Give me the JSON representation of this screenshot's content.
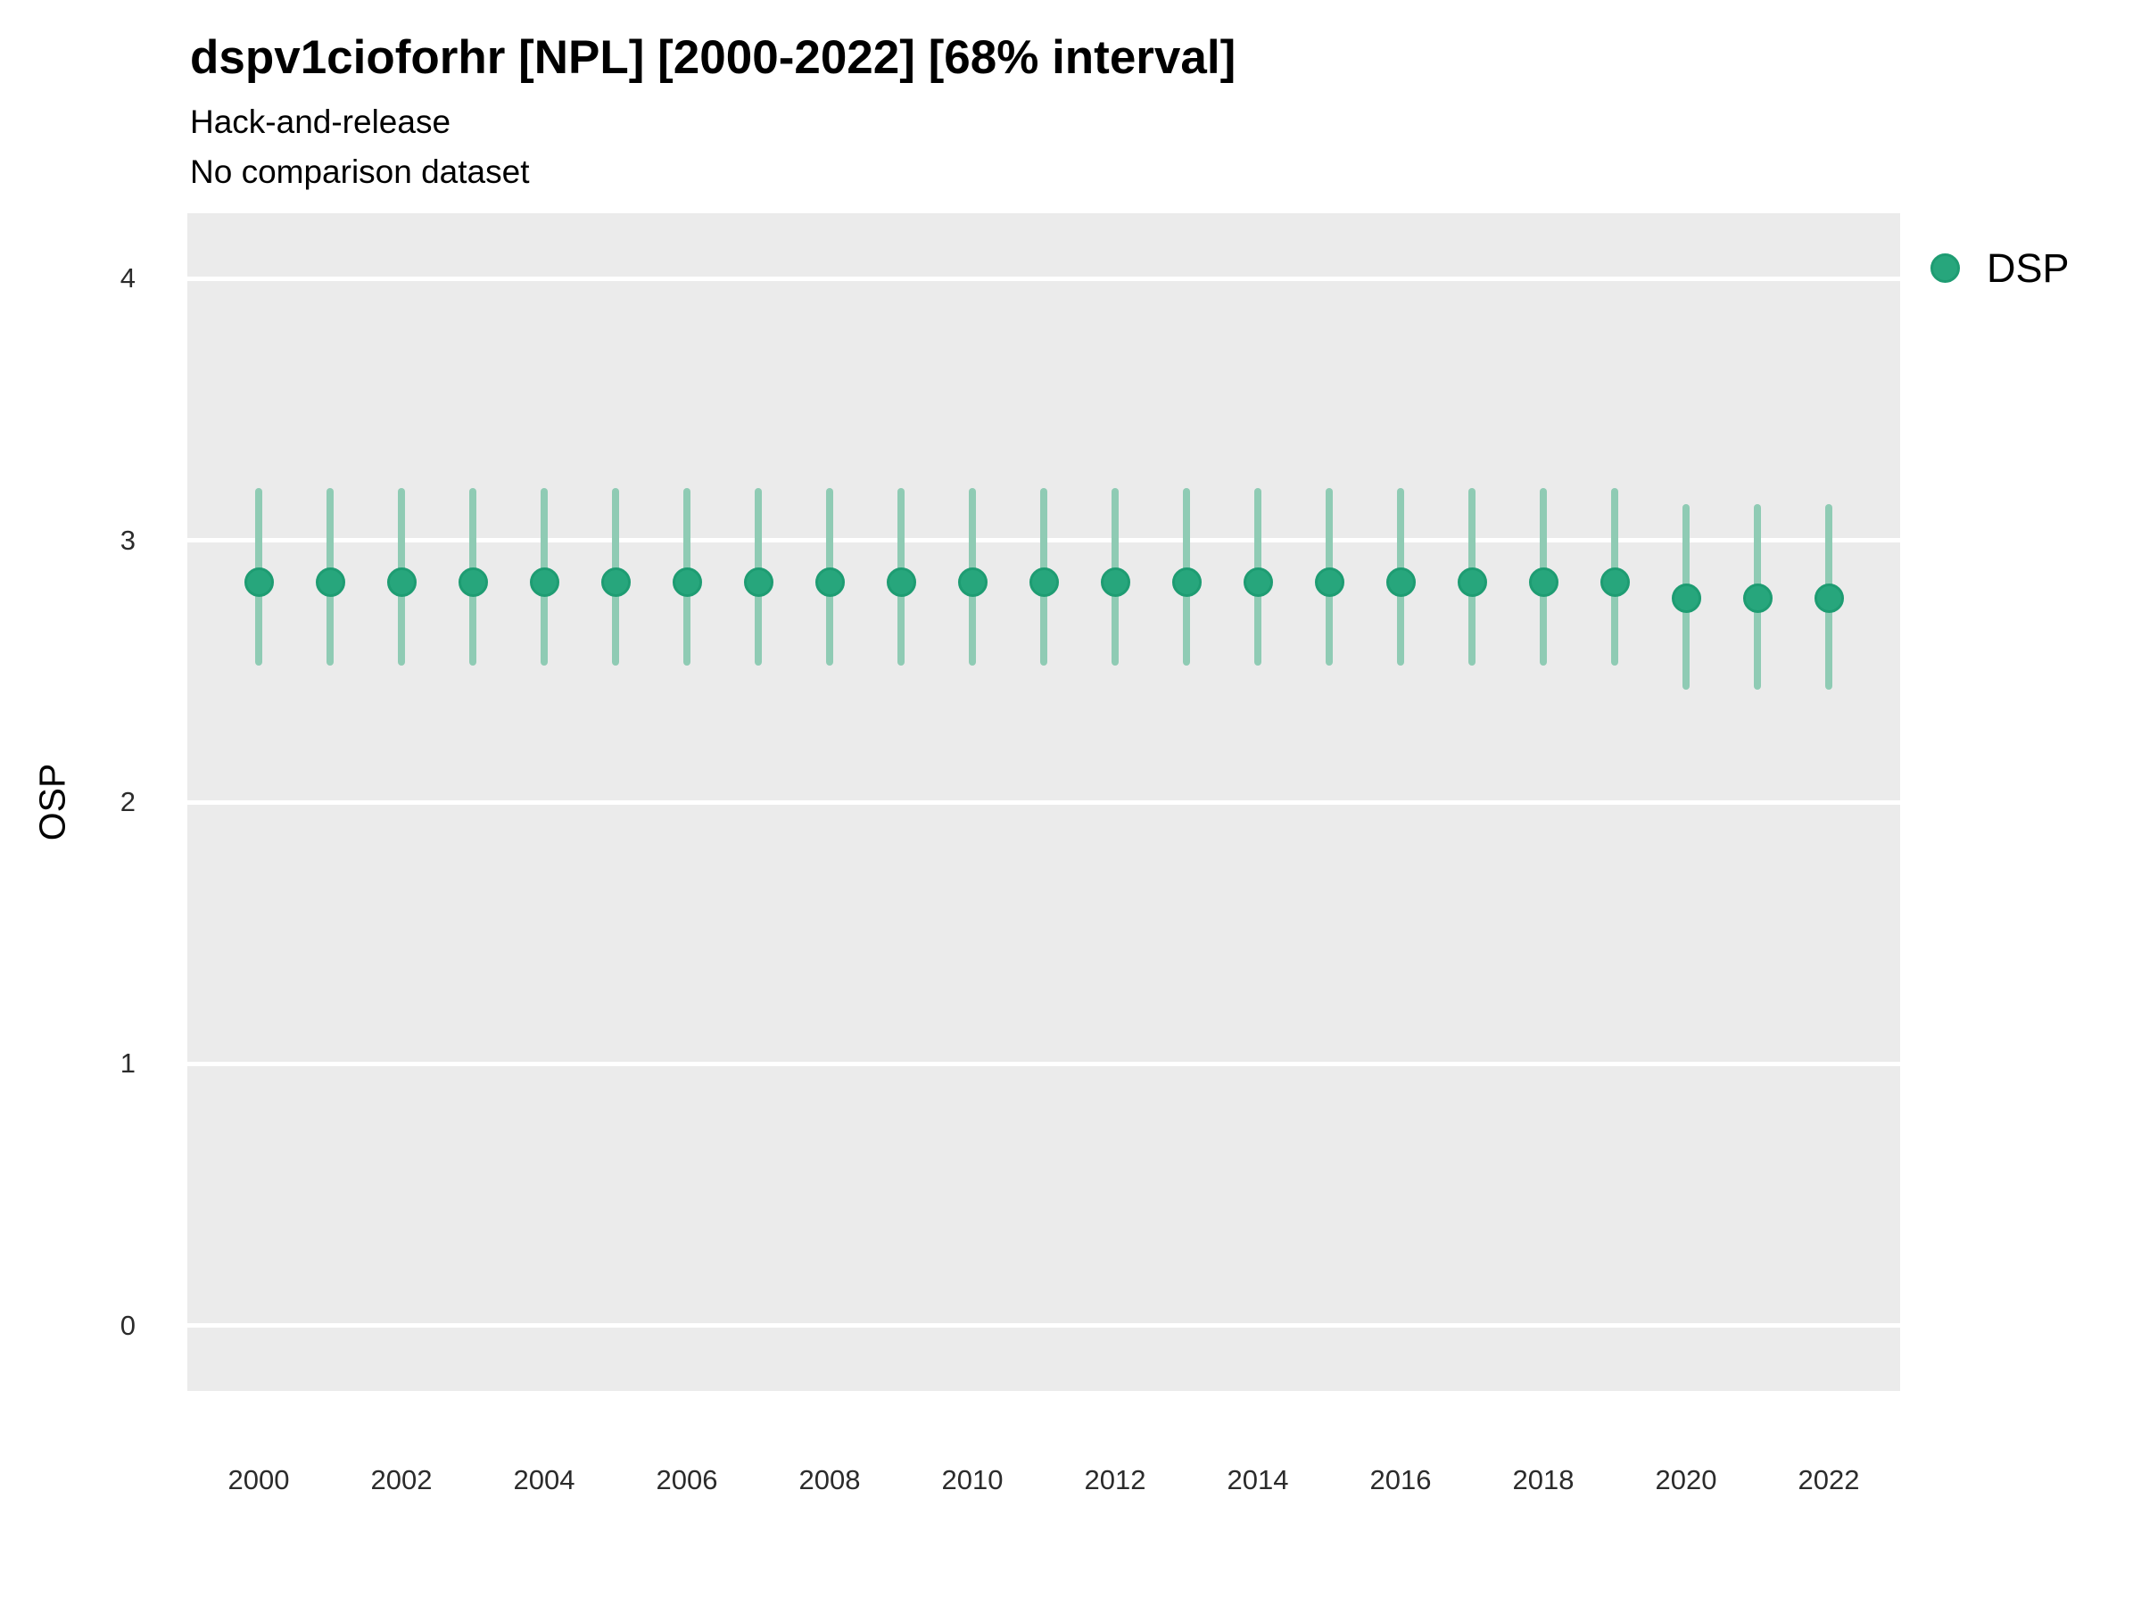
{
  "title": "dspv1cioforhr [NPL] [2000-2022] [68% interval]",
  "subtitle1": "Hack-and-release",
  "subtitle2": "No comparison dataset",
  "legend": {
    "label": "DSP"
  },
  "colors": {
    "point": "#27A67C",
    "point_border": "#1E9C72",
    "interval": "#8FCBB4",
    "panel_bg": "#EBEBEB",
    "gridline": "#FFFFFF"
  },
  "chart_data": {
    "type": "scatter",
    "subtype": "pointrange",
    "title": "dspv1cioforhr [NPL] [2000-2022] [68% interval]",
    "subtitle": [
      "Hack-and-release",
      "No comparison dataset"
    ],
    "xlabel": "",
    "ylabel": "OSP",
    "x_range": [
      1999,
      2023
    ],
    "y_range": [
      -0.25,
      4.25
    ],
    "x_ticks": [
      2000,
      2002,
      2004,
      2006,
      2008,
      2010,
      2012,
      2014,
      2016,
      2018,
      2020,
      2022
    ],
    "y_ticks": [
      0,
      1,
      2,
      3,
      4
    ],
    "grid": "horizontal-major-only",
    "legend_position": "right-top",
    "interval_level": "68%",
    "series": [
      {
        "name": "DSP",
        "points": [
          {
            "x": 2000,
            "y": 2.84,
            "lo": 2.52,
            "hi": 3.2
          },
          {
            "x": 2001,
            "y": 2.84,
            "lo": 2.52,
            "hi": 3.2
          },
          {
            "x": 2002,
            "y": 2.84,
            "lo": 2.52,
            "hi": 3.2
          },
          {
            "x": 2003,
            "y": 2.84,
            "lo": 2.52,
            "hi": 3.2
          },
          {
            "x": 2004,
            "y": 2.84,
            "lo": 2.52,
            "hi": 3.2
          },
          {
            "x": 2005,
            "y": 2.84,
            "lo": 2.52,
            "hi": 3.2
          },
          {
            "x": 2006,
            "y": 2.84,
            "lo": 2.52,
            "hi": 3.2
          },
          {
            "x": 2007,
            "y": 2.84,
            "lo": 2.52,
            "hi": 3.2
          },
          {
            "x": 2008,
            "y": 2.84,
            "lo": 2.52,
            "hi": 3.2
          },
          {
            "x": 2009,
            "y": 2.84,
            "lo": 2.52,
            "hi": 3.2
          },
          {
            "x": 2010,
            "y": 2.84,
            "lo": 2.52,
            "hi": 3.2
          },
          {
            "x": 2011,
            "y": 2.84,
            "lo": 2.52,
            "hi": 3.2
          },
          {
            "x": 2012,
            "y": 2.84,
            "lo": 2.52,
            "hi": 3.2
          },
          {
            "x": 2013,
            "y": 2.84,
            "lo": 2.52,
            "hi": 3.2
          },
          {
            "x": 2014,
            "y": 2.84,
            "lo": 2.52,
            "hi": 3.2
          },
          {
            "x": 2015,
            "y": 2.84,
            "lo": 2.52,
            "hi": 3.2
          },
          {
            "x": 2016,
            "y": 2.84,
            "lo": 2.52,
            "hi": 3.2
          },
          {
            "x": 2017,
            "y": 2.84,
            "lo": 2.52,
            "hi": 3.2
          },
          {
            "x": 2018,
            "y": 2.84,
            "lo": 2.52,
            "hi": 3.2
          },
          {
            "x": 2019,
            "y": 2.84,
            "lo": 2.52,
            "hi": 3.2
          },
          {
            "x": 2020,
            "y": 2.78,
            "lo": 2.43,
            "hi": 3.14
          },
          {
            "x": 2021,
            "y": 2.78,
            "lo": 2.43,
            "hi": 3.14
          },
          {
            "x": 2022,
            "y": 2.78,
            "lo": 2.43,
            "hi": 3.14
          }
        ]
      }
    ]
  }
}
